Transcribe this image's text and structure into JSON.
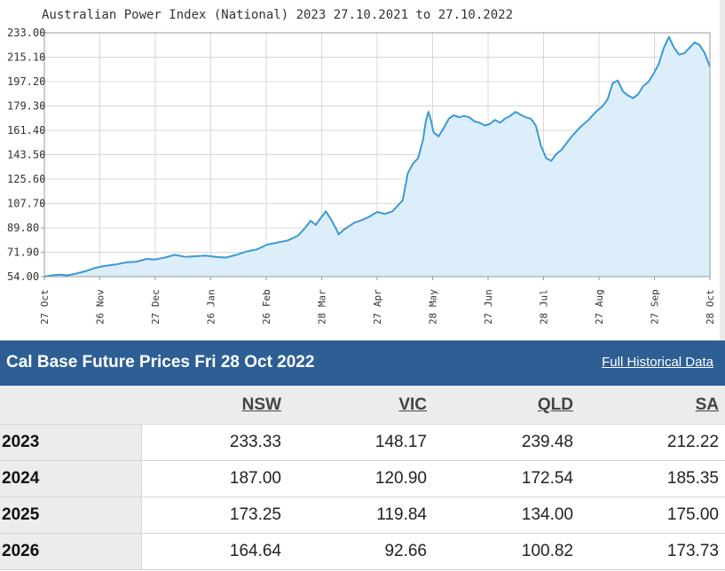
{
  "chart_data": {
    "type": "area",
    "title": "Australian Power Index (National) 2023 27.10.2021 to 27.10.2022",
    "y_ticks": [
      "233.00",
      "215.10",
      "197.20",
      "179.30",
      "161.40",
      "143.50",
      "125.60",
      "107.70",
      "89.80",
      "71.90",
      "54.00"
    ],
    "ylim": [
      54.0,
      233.0
    ],
    "x_ticks": [
      "27 Oct",
      "26 Nov",
      "27 Dec",
      "26 Jan",
      "26 Feb",
      "28 Mar",
      "27 Apr",
      "28 May",
      "27 Jun",
      "28 Jul",
      "27 Aug",
      "27 Sep",
      "28 Oct"
    ],
    "grid": true,
    "colors": {
      "line": "#3d9ad1",
      "fill": "#ddeefb",
      "grid": "#d8d8d8",
      "axis": "#999999"
    },
    "series": [
      {
        "points": [
          [
            0,
            54.0
          ],
          [
            3,
            55.0
          ],
          [
            6,
            55.5
          ],
          [
            9,
            55.0
          ],
          [
            12,
            56.0
          ],
          [
            16,
            58.0
          ],
          [
            20,
            60.5
          ],
          [
            24,
            62.0
          ],
          [
            28,
            63.0
          ],
          [
            32,
            64.5
          ],
          [
            36,
            65.0
          ],
          [
            40,
            67.0
          ],
          [
            43,
            66.5
          ],
          [
            47,
            68.0
          ],
          [
            51,
            70.0
          ],
          [
            55,
            68.5
          ],
          [
            59,
            69.0
          ],
          [
            63,
            69.5
          ],
          [
            67,
            68.5
          ],
          [
            71,
            68.0
          ],
          [
            75,
            70.0
          ],
          [
            79,
            72.5
          ],
          [
            83,
            74.0
          ],
          [
            87,
            77.5
          ],
          [
            91,
            79.0
          ],
          [
            95,
            80.5
          ],
          [
            99,
            84.0
          ],
          [
            102,
            90.0
          ],
          [
            104,
            95.0
          ],
          [
            106,
            92.0
          ],
          [
            108,
            97.0
          ],
          [
            110,
            102.0
          ],
          [
            112,
            96.0
          ],
          [
            114,
            89.0
          ],
          [
            115,
            85.0
          ],
          [
            117,
            88.5
          ],
          [
            119,
            91.0
          ],
          [
            121,
            93.5
          ],
          [
            124,
            95.5
          ],
          [
            127,
            98.0
          ],
          [
            130,
            101.5
          ],
          [
            133,
            100.0
          ],
          [
            136,
            102.0
          ],
          [
            138,
            106.0
          ],
          [
            140,
            110.0
          ],
          [
            141,
            120.0
          ],
          [
            142,
            130.0
          ],
          [
            144,
            137.0
          ],
          [
            146,
            141.0
          ],
          [
            148,
            155.0
          ],
          [
            149,
            168.0
          ],
          [
            150,
            175.0
          ],
          [
            151,
            169.0
          ],
          [
            152,
            160.0
          ],
          [
            154,
            157.0
          ],
          [
            156,
            163.0
          ],
          [
            158,
            170.0
          ],
          [
            160,
            172.5
          ],
          [
            162,
            171.0
          ],
          [
            164,
            172.0
          ],
          [
            166,
            171.0
          ],
          [
            168,
            168.0
          ],
          [
            170,
            167.0
          ],
          [
            172,
            165.0
          ],
          [
            174,
            166.0
          ],
          [
            176,
            169.0
          ],
          [
            178,
            167.0
          ],
          [
            180,
            170.0
          ],
          [
            182,
            172.0
          ],
          [
            184,
            175.0
          ],
          [
            186,
            173.0
          ],
          [
            188,
            171.0
          ],
          [
            190,
            170.0
          ],
          [
            192,
            165.0
          ],
          [
            194,
            150.0
          ],
          [
            196,
            141.0
          ],
          [
            198,
            139.0
          ],
          [
            200,
            144.0
          ],
          [
            202,
            147.0
          ],
          [
            204,
            152.0
          ],
          [
            206,
            157.0
          ],
          [
            208,
            161.0
          ],
          [
            210,
            165.0
          ],
          [
            212,
            168.0
          ],
          [
            214,
            172.0
          ],
          [
            216,
            176.0
          ],
          [
            218,
            179.0
          ],
          [
            220,
            184.0
          ],
          [
            222,
            196.0
          ],
          [
            224,
            198.0
          ],
          [
            226,
            190.0
          ],
          [
            228,
            187.0
          ],
          [
            230,
            185.0
          ],
          [
            232,
            188.0
          ],
          [
            234,
            194.0
          ],
          [
            236,
            197.0
          ],
          [
            238,
            203.0
          ],
          [
            240,
            210.0
          ],
          [
            242,
            222.0
          ],
          [
            244,
            230.0
          ],
          [
            246,
            222.0
          ],
          [
            248,
            217.0
          ],
          [
            250,
            218.0
          ],
          [
            252,
            222.0
          ],
          [
            254,
            226.0
          ],
          [
            256,
            224.0
          ],
          [
            258,
            218.0
          ],
          [
            259,
            213.0
          ],
          [
            260,
            208.0
          ]
        ]
      }
    ]
  },
  "panel": {
    "title": "Cal Base Future Prices Fri 28 Oct 2022",
    "link": "Full Historical Data"
  },
  "table": {
    "headers": [
      "",
      "NSW",
      "VIC",
      "QLD",
      "SA"
    ],
    "rows": [
      {
        "year": "2023",
        "values": [
          "233.33",
          "148.17",
          "239.48",
          "212.22"
        ]
      },
      {
        "year": "2024",
        "values": [
          "187.00",
          "120.90",
          "172.54",
          "185.35"
        ]
      },
      {
        "year": "2025",
        "values": [
          "173.25",
          "119.84",
          "134.00",
          "175.00"
        ]
      },
      {
        "year": "2026",
        "values": [
          "164.64",
          "92.66",
          "100.82",
          "173.73"
        ]
      }
    ]
  }
}
